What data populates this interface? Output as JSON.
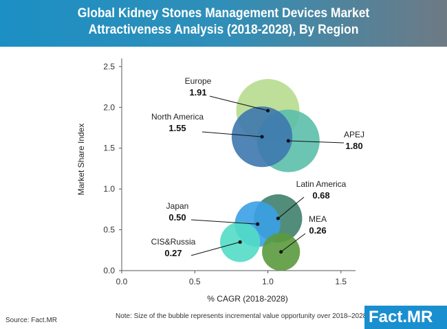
{
  "title_lines": [
    "Global Kidney Stones Management Devices Market",
    "Attractiveness Analysis (2018-2028), By Region"
  ],
  "source": "Source: Fact.MR",
  "note": "Note: Size of the bubble represents incremental value opportunity over 2018–2028",
  "logo": "Fact.MR",
  "chart_data": {
    "type": "scatter",
    "subtype": "bubble",
    "xlabel": "% CAGR (2018-2028)",
    "ylabel": "Market Share Index",
    "xlim": [
      0,
      1.6
    ],
    "ylim": [
      0,
      2.6
    ],
    "xticks": [
      "0.0",
      "0.5",
      "1.0",
      "1.5"
    ],
    "yticks": [
      "0.0",
      "0.5",
      "1.0",
      "1.5",
      "2.0",
      "2.5"
    ],
    "grid": false,
    "points": [
      {
        "name": "Europe",
        "label": "1.91",
        "x": 1.0,
        "y": 1.96,
        "size": 1.0,
        "color": "#b7db8f"
      },
      {
        "name": "North America",
        "label": "1.55",
        "x": 0.96,
        "y": 1.64,
        "size": 0.92,
        "color": "#3d78ae"
      },
      {
        "name": "APEJ",
        "label": "1.80",
        "x": 1.14,
        "y": 1.59,
        "size": 0.98,
        "color": "#5bbfaa"
      },
      {
        "name": "Latin America",
        "label": "0.68",
        "x": 1.07,
        "y": 0.64,
        "size": 0.58,
        "color": "#3f7f6c"
      },
      {
        "name": "Japan",
        "label": "0.50",
        "x": 0.93,
        "y": 0.57,
        "size": 0.52,
        "color": "#3aa0e6"
      },
      {
        "name": "CIS&Russia",
        "label": "0.27",
        "x": 0.81,
        "y": 0.35,
        "size": 0.4,
        "color": "#52dcc6"
      },
      {
        "name": "MEA",
        "label": "0.26",
        "x": 1.09,
        "y": 0.23,
        "size": 0.36,
        "color": "#5a9a3e"
      }
    ]
  }
}
